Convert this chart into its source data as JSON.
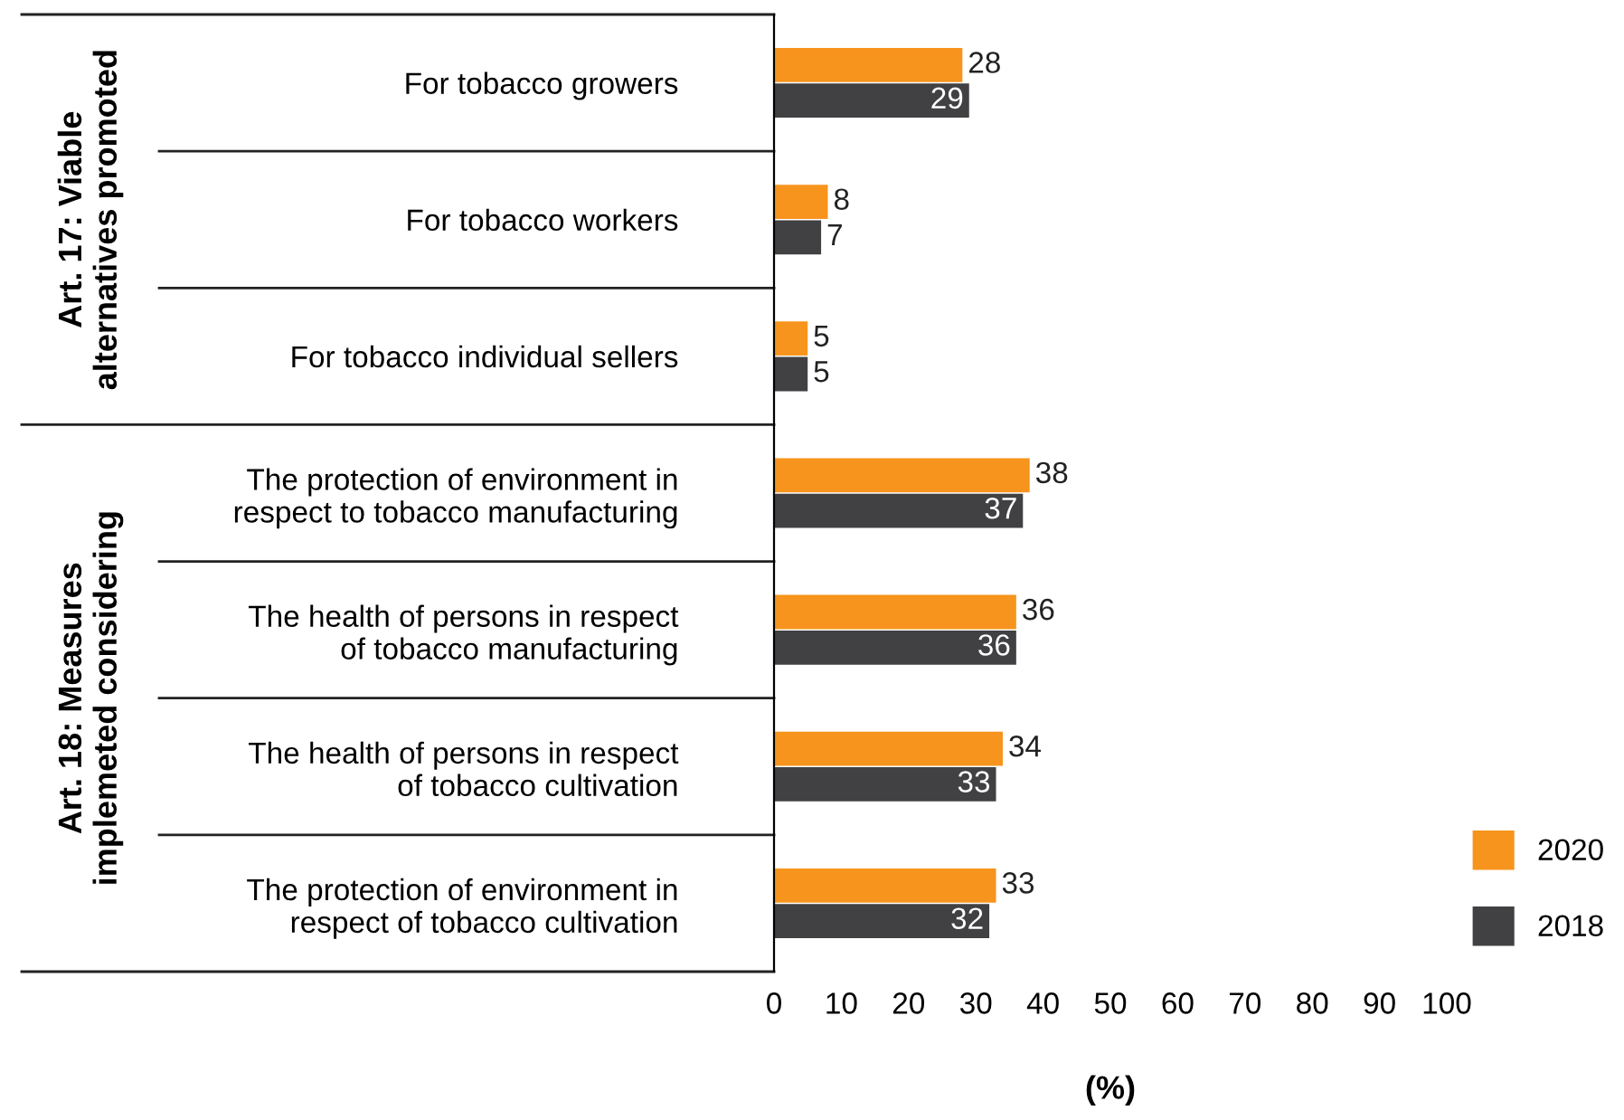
{
  "chart_data": {
    "type": "bar",
    "orientation": "horizontal",
    "xlabel": "(%)",
    "categories": [
      "For tobacco growers",
      "For tobacco workers",
      "For tobacco individual sellers",
      "The protection of environment in\nrespect to tobacco manufacturing",
      "The health of persons in respect\nof tobacco manufacturing",
      "The health of persons in respect\nof tobacco cultivation",
      "The protection of environment in\nrespect of tobacco cultivation"
    ],
    "series": [
      {
        "name": "2020",
        "color": "#f7941d",
        "values": [
          28,
          8,
          5,
          38,
          36,
          34,
          33
        ]
      },
      {
        "name": "2018",
        "color": "#414042",
        "values": [
          29,
          7,
          5,
          37,
          36,
          33,
          32
        ]
      }
    ],
    "xlim": [
      0,
      100
    ],
    "xticks": [
      0,
      10,
      20,
      30,
      40,
      50,
      60,
      70,
      80,
      90,
      100
    ],
    "annotations": [
      "Art. 17: Viable\nalternatives promoted",
      "Art. 18: Measures\nimplemeted considering"
    ],
    "data_labels": true,
    "legend": "bottom right",
    "grid": false
  }
}
